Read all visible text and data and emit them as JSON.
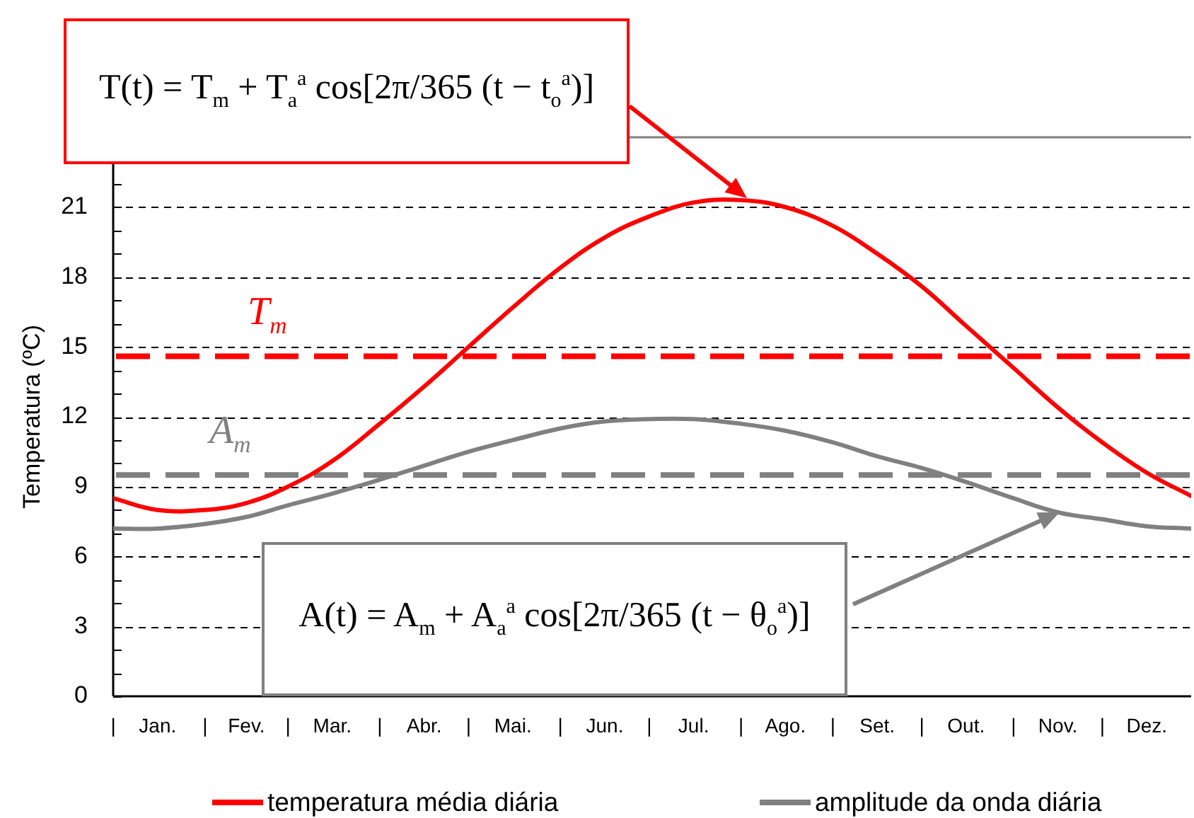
{
  "chart_data": {
    "type": "line",
    "ylabel": "Temperatura (ºC)",
    "x": [
      "--01-01",
      "--01-16",
      "--02-01",
      "--02-15",
      "--03-01",
      "--03-16",
      "--04-01",
      "--04-16",
      "--05-01",
      "--05-16",
      "--06-01",
      "--06-16",
      "--07-01",
      "--07-16",
      "--08-01",
      "--08-16",
      "--09-01",
      "--09-16",
      "--10-01",
      "--10-16",
      "--11-01",
      "--11-16",
      "--12-01",
      "--12-16",
      "--12-31"
    ],
    "series": [
      {
        "name": "temperatura média diária",
        "color": "#ff0000",
        "values": [
          8.5,
          8.0,
          8.0,
          8.3,
          9.0,
          10.1,
          11.7,
          13.3,
          15.0,
          16.7,
          18.4,
          19.7,
          20.6,
          21.2,
          21.3,
          21.0,
          20.2,
          19.0,
          17.6,
          15.9,
          14.1,
          12.4,
          10.9,
          9.6,
          8.6
        ]
      },
      {
        "name": "amplitude da onda diária",
        "color": "#808080",
        "values": [
          7.2,
          7.2,
          7.4,
          7.7,
          8.2,
          8.7,
          9.3,
          9.9,
          10.5,
          11.0,
          11.5,
          11.8,
          11.9,
          11.9,
          11.7,
          11.4,
          10.9,
          10.3,
          9.8,
          9.2,
          8.5,
          7.9,
          7.6,
          7.3,
          7.2
        ]
      }
    ],
    "xlim": [
      "--01-01",
      "--12-31"
    ],
    "xticks": [
      {
        "value": "--01-01",
        "label": "|"
      },
      {
        "value": "--01-16",
        "label": "Jan."
      },
      {
        "value": "--02-01",
        "label": "|"
      },
      {
        "value": "--02-15",
        "label": "Fev."
      },
      {
        "value": "--03-01",
        "label": "|"
      },
      {
        "value": "--03-16",
        "label": "Mar."
      },
      {
        "value": "--04-01",
        "label": "|"
      },
      {
        "value": "--04-16",
        "label": "Abr."
      },
      {
        "value": "--05-01",
        "label": "|"
      },
      {
        "value": "--05-16",
        "label": "Mai."
      },
      {
        "value": "--06-01",
        "label": "|"
      },
      {
        "value": "--06-16",
        "label": "Jun."
      },
      {
        "value": "--07-01",
        "label": "|"
      },
      {
        "value": "--07-16",
        "label": "Jul."
      },
      {
        "value": "--08-01",
        "label": "|"
      },
      {
        "value": "--08-16",
        "label": "Ago."
      },
      {
        "value": "--09-01",
        "label": "|"
      },
      {
        "value": "--09-16",
        "label": "Set."
      },
      {
        "value": "--10-01",
        "label": "|"
      },
      {
        "value": "--10-16",
        "label": "Out."
      },
      {
        "value": "--11-01",
        "label": "|"
      },
      {
        "value": "--11-16",
        "label": "Nov."
      },
      {
        "value": "--12-01",
        "label": "|"
      },
      {
        "value": "--12-16",
        "label": "Dez."
      }
    ],
    "ylim": [
      0,
      24
    ],
    "yticks": [
      0,
      {
        "value": 1,
        "label": null
      },
      {
        "value": 2,
        "label": null
      },
      3,
      {
        "value": 4,
        "label": null
      },
      {
        "value": 5,
        "label": null
      },
      6,
      {
        "value": 7,
        "label": null
      },
      {
        "value": 8,
        "label": null
      },
      9,
      {
        "value": 10,
        "label": null
      },
      {
        "value": 11,
        "label": null
      },
      12,
      {
        "value": 13,
        "label": null
      },
      {
        "value": 14,
        "label": null
      },
      15,
      {
        "value": 16,
        "label": null
      },
      {
        "value": 17,
        "label": null
      },
      18,
      {
        "value": 19,
        "label": null
      },
      {
        "value": 20,
        "label": null
      },
      21,
      {
        "value": 22,
        "label": null
      },
      {
        "value": 23,
        "label": null
      },
      {
        "value": 24,
        "label": null
      }
    ],
    "grid": "y",
    "legend": "bottom",
    "marker": "none",
    "line_style": "solid",
    "ref_lines": [
      {
        "axis": "y",
        "value": 14.6,
        "label": "T$_{m}$",
        "color": "#ff0000",
        "line_style": "dashed"
      },
      {
        "axis": "y",
        "value": 9.5,
        "label": "A$_{m}$",
        "color": "#808080",
        "line_style": "dashed"
      }
    ],
    "annotations": [
      "T(t) = T$_{m}$ + T$_{a}$$^{a}$ cos[2π/365 (t − t$_{o}$$^{a}$)]",
      "A(t) = A$_{m}$ + A$_{a}$$^{a}$ cos[2π/365 (t − θ$_{o}$$^{a}$)]"
    ]
  }
}
